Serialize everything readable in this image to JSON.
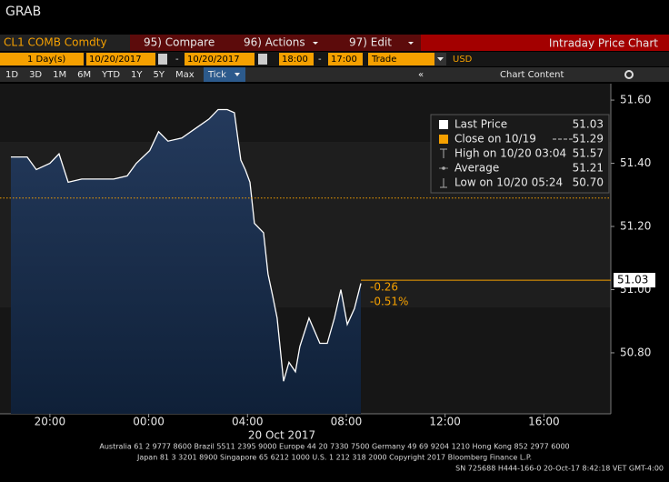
{
  "ui": {
    "title": "GRAB",
    "security": "CL1 COMB Comdty",
    "menu": [
      "95) Compare",
      "96) Actions",
      "97) Edit"
    ],
    "function_name": "Intraday Price Chart",
    "period": "1 Day(s)",
    "start_date": "10/20/2017",
    "end_date": "10/20/2017",
    "range_sep": "-",
    "start_time": "18:00",
    "end_time": "17:00",
    "field": "Trade",
    "currency": "USD",
    "ranges": [
      "1D",
      "3D",
      "1M",
      "6M",
      "YTD",
      "1Y",
      "5Y",
      "Max"
    ],
    "interval": "Tick",
    "collapse": "«",
    "chart_content": "Chart Content",
    "footer": [
      "Australia 61 2 9777 8600 Brazil 5511 2395 9000 Europe 44 20 7330 7500 Germany 49 69 9204 1210 Hong Kong 852 2977 6000",
      "Japan 81 3 3201 8900        Singapore 65 6212 1000        U.S. 1 212 318 2000              Copyright 2017 Bloomberg Finance L.P.",
      "SN 725688 H444-166-0 20-Oct-17   8:42:18 VET   GMT-4:00"
    ]
  },
  "chart_data": {
    "type": "area",
    "x_caption": "20 Oct 2017",
    "series": [
      {
        "name": "Last Price",
        "color": "#ffffff",
        "x": [
          -5.58,
          -4.92,
          -4.55,
          -4.0,
          -3.63,
          -3.26,
          -2.71,
          -1.98,
          -1.42,
          -0.87,
          -0.5,
          0.04,
          0.4,
          0.78,
          1.34,
          1.89,
          2.44,
          2.81,
          3.18,
          3.47,
          3.73,
          3.91,
          4.1,
          4.28,
          4.65,
          4.83,
          5.02,
          5.2,
          5.46,
          5.68,
          5.94,
          6.12,
          6.49,
          6.93,
          7.23,
          7.52,
          7.78,
          8.04,
          8.33,
          8.59
        ],
        "values": [
          51.42,
          51.42,
          51.38,
          51.4,
          51.43,
          51.34,
          51.35,
          51.35,
          51.35,
          51.36,
          51.4,
          51.44,
          51.5,
          51.47,
          51.48,
          51.51,
          51.54,
          51.57,
          51.57,
          51.56,
          51.41,
          51.38,
          51.34,
          51.21,
          51.18,
          51.05,
          50.98,
          50.91,
          50.71,
          50.77,
          50.74,
          50.82,
          50.91,
          50.83,
          50.83,
          50.91,
          51.0,
          50.89,
          50.94,
          51.02
        ]
      }
    ],
    "last_price": 51.03,
    "prev_close": {
      "label": "Close on 10/19",
      "value": 51.29,
      "color": "#f5a000"
    },
    "high": {
      "label": "High on 10/20 03:04",
      "value": 51.57
    },
    "average": {
      "label": "Average",
      "value": 51.21
    },
    "low": {
      "label": "Low on 10/20 05:24",
      "value": 50.7,
      "value_label": "50.70"
    },
    "change": -0.26,
    "change_pct": {
      "value": -0.51,
      "label": "-0.51%"
    },
    "xlim": [
      -6.02,
      18.71
    ],
    "xticks": [
      {
        "value": -4,
        "label": "20:00"
      },
      {
        "value": 0,
        "label": "00:00"
      },
      {
        "value": 4,
        "label": "04:00"
      },
      {
        "value": 8,
        "label": "08:00"
      },
      {
        "value": 12,
        "label": "12:00"
      },
      {
        "value": 16,
        "label": "16:00"
      }
    ],
    "ylim": [
      50.607,
      51.652
    ],
    "yticks": [
      {
        "value": 50.8,
        "label": "50.80"
      },
      {
        "value": 51.0,
        "label": "51.00"
      },
      {
        "value": 51.2,
        "label": "51.20"
      },
      {
        "value": 51.4,
        "label": "51.40"
      },
      {
        "value": 51.6,
        "label": "51.60"
      }
    ]
  }
}
